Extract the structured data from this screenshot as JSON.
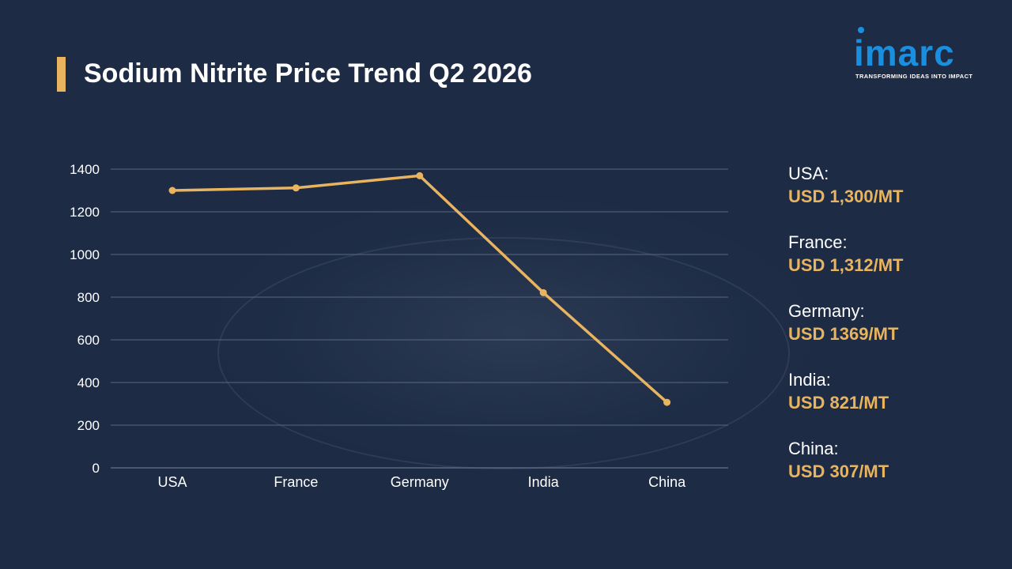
{
  "header": {
    "title": "Sodium Nitrite Price Trend Q2 2026"
  },
  "logo": {
    "wordmark": "imarc",
    "tagline": "TRANSFORMING IDEAS INTO IMPACT"
  },
  "colors": {
    "background": "#1d2b45",
    "accent": "#e8b460",
    "logo_blue": "#1a8fe0",
    "gridline": "#5a6780",
    "text": "#ffffff"
  },
  "legend": [
    {
      "country": "USA:",
      "price": "USD 1,300/MT"
    },
    {
      "country": "France:",
      "price": "USD 1,312/MT"
    },
    {
      "country": "Germany:",
      "price": "USD 1369/MT"
    },
    {
      "country": "India:",
      "price": "USD 821/MT"
    },
    {
      "country": "China:",
      "price": "USD 307/MT"
    }
  ],
  "chart_data": {
    "type": "line",
    "title": "Sodium Nitrite Price Trend Q2 2026",
    "xlabel": "",
    "ylabel": "",
    "categories": [
      "USA",
      "France",
      "Germany",
      "India",
      "China"
    ],
    "values": [
      1300,
      1312,
      1369,
      821,
      307
    ],
    "ylim": [
      0,
      1400
    ],
    "yticks": [
      0,
      200,
      400,
      600,
      800,
      1000,
      1200,
      1400
    ],
    "grid": true,
    "legend": "none"
  }
}
